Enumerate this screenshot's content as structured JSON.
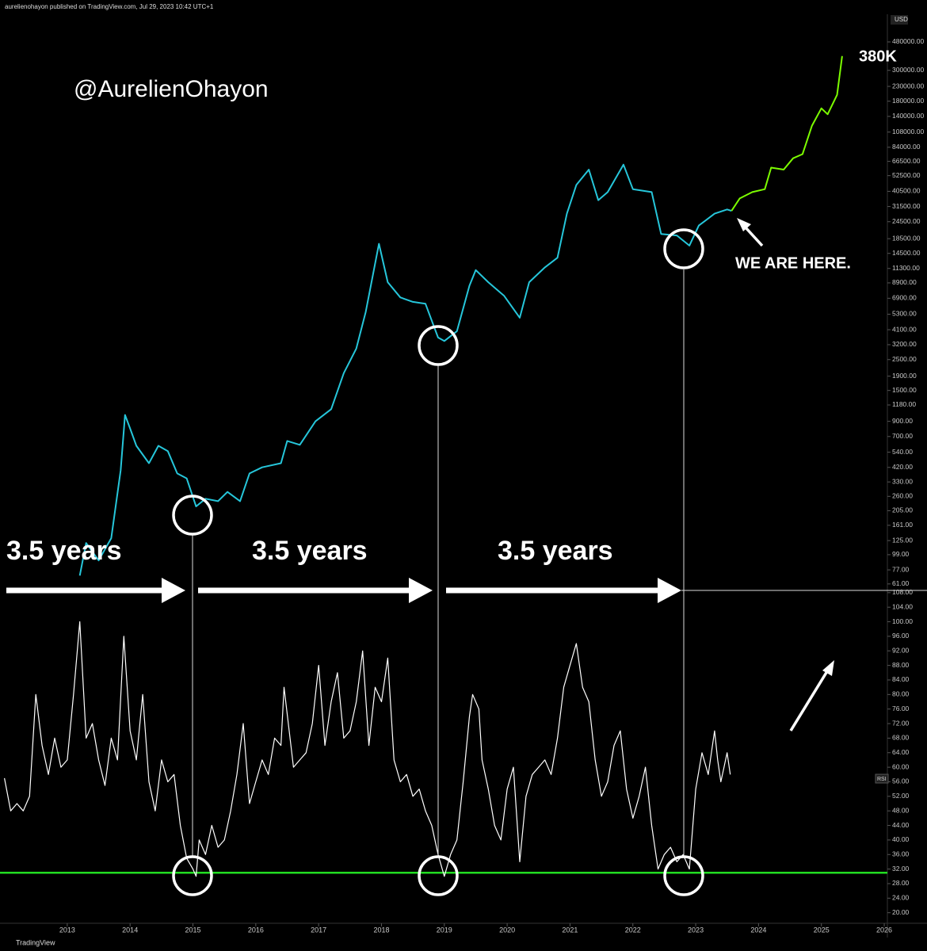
{
  "header": "aurelienohayon published on TradingView.com, Jul 29, 2023 10:42 UTC+1",
  "footer": "TradingView",
  "chart_data": [
    {
      "type": "line",
      "unit": "USD",
      "log_scale": true,
      "xlim": [
        2011.93,
        2026.05
      ],
      "ylim": [
        54.8,
        759000
      ],
      "yticks": [
        {
          "value": 480000,
          "label": "480000.00"
        },
        {
          "value": 300000,
          "label": "300000.00"
        },
        {
          "value": 230000,
          "label": "230000.00"
        },
        {
          "value": 180000,
          "label": "180000.00"
        },
        {
          "value": 140000,
          "label": "140000.00"
        },
        {
          "value": 108000,
          "label": "108000.00"
        },
        {
          "value": 84000,
          "label": "84000.00"
        },
        {
          "value": 66500,
          "label": "66500.00"
        },
        {
          "value": 52500,
          "label": "52500.00"
        },
        {
          "value": 40500,
          "label": "40500.00"
        },
        {
          "value": 31500,
          "label": "31500.00"
        },
        {
          "value": 24500,
          "label": "24500.00"
        },
        {
          "value": 18500,
          "label": "18500.00"
        },
        {
          "value": 14500,
          "label": "14500.00"
        },
        {
          "value": 11300,
          "label": "11300.00"
        },
        {
          "value": 8900,
          "label": "8900.00"
        },
        {
          "value": 6900,
          "label": "6900.00"
        },
        {
          "value": 5300,
          "label": "5300.00"
        },
        {
          "value": 4100,
          "label": "4100.00"
        },
        {
          "value": 3200,
          "label": "3200.00"
        },
        {
          "value": 2500,
          "label": "2500.00"
        },
        {
          "value": 1900,
          "label": "1900.00"
        },
        {
          "value": 1500,
          "label": "1500.00"
        },
        {
          "value": 1180,
          "label": "1180.00"
        },
        {
          "value": 900,
          "label": "900.00"
        },
        {
          "value": 700,
          "label": "700.00"
        },
        {
          "value": 540,
          "label": "540.00"
        },
        {
          "value": 420,
          "label": "420.00"
        },
        {
          "value": 330,
          "label": "330.00"
        },
        {
          "value": 260,
          "label": "260.00"
        },
        {
          "value": 205,
          "label": "205.00"
        },
        {
          "value": 161,
          "label": "161.00"
        },
        {
          "value": 125,
          "label": "125.00"
        },
        {
          "value": 99,
          "label": "99.00"
        },
        {
          "value": 77,
          "label": "77.00"
        },
        {
          "value": 61,
          "label": "61.00"
        }
      ],
      "series": [
        {
          "color": "#26c6da",
          "x": [
            2013.2,
            2013.3,
            2013.5,
            2013.7,
            2013.85,
            2013.92,
            2014.0,
            2014.1,
            2014.3,
            2014.45,
            2014.6,
            2014.75,
            2014.9,
            2015.05,
            2015.2,
            2015.4,
            2015.55,
            2015.75,
            2015.9,
            2016.1,
            2016.4,
            2016.5,
            2016.7,
            2016.95,
            2017.2,
            2017.4,
            2017.6,
            2017.75,
            2017.96,
            2018.1,
            2018.3,
            2018.5,
            2018.7,
            2018.9,
            2019.0,
            2019.2,
            2019.4,
            2019.5,
            2019.7,
            2019.95,
            2020.2,
            2020.35,
            2020.6,
            2020.8,
            2020.95,
            2021.1,
            2021.3,
            2021.45,
            2021.6,
            2021.85,
            2022.0,
            2022.3,
            2022.45,
            2022.7,
            2022.9,
            2023.05,
            2023.3,
            2023.5,
            2023.57
          ],
          "values": [
            70,
            120,
            90,
            130,
            400,
            1000,
            800,
            600,
            450,
            600,
            550,
            380,
            350,
            220,
            250,
            240,
            280,
            240,
            380,
            420,
            450,
            650,
            610,
            900,
            1100,
            2000,
            3000,
            5500,
            17000,
            9000,
            7000,
            6500,
            6300,
            3600,
            3400,
            4000,
            8500,
            11000,
            9000,
            7200,
            5000,
            9000,
            11500,
            13500,
            28000,
            45000,
            58000,
            35000,
            40000,
            63000,
            42000,
            40000,
            20000,
            19500,
            16500,
            23000,
            28000,
            30000,
            29300
          ]
        },
        {
          "color": "#7cfc00",
          "x": [
            2023.57,
            2023.7,
            2023.9,
            2024.1,
            2024.2,
            2024.4,
            2024.55,
            2024.7,
            2024.85,
            2025.0,
            2025.1,
            2025.25,
            2025.33
          ],
          "values": [
            29300,
            36000,
            40000,
            42000,
            60000,
            58000,
            70000,
            75000,
            120000,
            160000,
            145000,
            200000,
            380000
          ]
        }
      ],
      "annotations": [
        "@AurelienOhayon",
        "380K",
        "WE ARE HERE.",
        "3.5 years",
        "3.5 years",
        "3.5 years"
      ]
    },
    {
      "type": "line",
      "xlim": [
        2011.93,
        2026.05
      ],
      "ylim": [
        17.1,
        108.4
      ],
      "xticks": [
        2013,
        2014,
        2015,
        2016,
        2017,
        2018,
        2019,
        2020,
        2021,
        2022,
        2023,
        2024,
        2025,
        2026
      ],
      "yticks": [
        {
          "value": 108,
          "label": "108.00"
        },
        {
          "value": 104,
          "label": "104.00"
        },
        {
          "value": 100,
          "label": "100.00"
        },
        {
          "value": 96,
          "label": "96.00"
        },
        {
          "value": 92,
          "label": "92.00"
        },
        {
          "value": 88,
          "label": "88.00"
        },
        {
          "value": 84,
          "label": "84.00"
        },
        {
          "value": 80,
          "label": "80.00"
        },
        {
          "value": 76,
          "label": "76.00"
        },
        {
          "value": 72,
          "label": "72.00"
        },
        {
          "value": 68,
          "label": "68.00"
        },
        {
          "value": 64,
          "label": "64.00"
        },
        {
          "value": 60,
          "label": "60.00"
        },
        {
          "value": 56,
          "label": "56.00"
        },
        {
          "value": 52,
          "label": "52.00"
        },
        {
          "value": 48,
          "label": "48.00"
        },
        {
          "value": 44,
          "label": "44.00"
        },
        {
          "value": 40,
          "label": "40.00"
        },
        {
          "value": 36,
          "label": "36.00"
        },
        {
          "value": 32,
          "label": "32.00"
        },
        {
          "value": 28,
          "label": "28.00"
        },
        {
          "value": 24,
          "label": "24.00"
        },
        {
          "value": 20,
          "label": "20.00"
        }
      ],
      "hline": {
        "value": 31,
        "color": "#22dd22"
      },
      "series": [
        {
          "name": "RSI",
          "color": "#ffffff",
          "x": [
            2012.0,
            2012.1,
            2012.2,
            2012.3,
            2012.4,
            2012.5,
            2012.6,
            2012.7,
            2012.8,
            2012.9,
            2013.0,
            2013.1,
            2013.2,
            2013.3,
            2013.4,
            2013.5,
            2013.6,
            2013.7,
            2013.8,
            2013.9,
            2014.0,
            2014.1,
            2014.2,
            2014.3,
            2014.4,
            2014.5,
            2014.6,
            2014.7,
            2014.8,
            2014.9,
            2015.0,
            2015.05,
            2015.1,
            2015.2,
            2015.3,
            2015.4,
            2015.5,
            2015.6,
            2015.7,
            2015.8,
            2015.9,
            2016.0,
            2016.1,
            2016.2,
            2016.3,
            2016.4,
            2016.45,
            2016.6,
            2016.7,
            2016.8,
            2016.9,
            2017.0,
            2017.1,
            2017.2,
            2017.3,
            2017.4,
            2017.5,
            2017.6,
            2017.7,
            2017.8,
            2017.9,
            2018.0,
            2018.1,
            2018.2,
            2018.3,
            2018.4,
            2018.5,
            2018.6,
            2018.7,
            2018.8,
            2018.9,
            2019.0,
            2019.1,
            2019.2,
            2019.3,
            2019.4,
            2019.45,
            2019.55,
            2019.6,
            2019.7,
            2019.8,
            2019.9,
            2020.0,
            2020.1,
            2020.2,
            2020.3,
            2020.4,
            2020.5,
            2020.6,
            2020.7,
            2020.8,
            2020.9,
            2021.0,
            2021.1,
            2021.2,
            2021.3,
            2021.4,
            2021.5,
            2021.6,
            2021.7,
            2021.8,
            2021.9,
            2022.0,
            2022.1,
            2022.2,
            2022.3,
            2022.4,
            2022.5,
            2022.6,
            2022.7,
            2022.8,
            2022.9,
            2023.0,
            2023.1,
            2023.2,
            2023.3,
            2023.35,
            2023.4,
            2023.45,
            2023.5,
            2023.55
          ],
          "values": [
            57,
            48,
            50,
            48,
            52,
            80,
            66,
            58,
            68,
            60,
            62,
            80,
            100,
            68,
            72,
            62,
            55,
            68,
            62,
            96,
            70,
            62,
            80,
            56,
            48,
            62,
            56,
            58,
            44,
            35,
            32,
            30,
            40,
            36,
            44,
            38,
            40,
            48,
            58,
            72,
            50,
            56,
            62,
            58,
            68,
            66,
            82,
            60,
            62,
            64,
            72,
            88,
            66,
            78,
            86,
            68,
            70,
            78,
            92,
            66,
            82,
            78,
            90,
            62,
            56,
            58,
            52,
            54,
            48,
            44,
            36,
            30,
            36,
            40,
            56,
            74,
            80,
            76,
            62,
            54,
            44,
            40,
            54,
            60,
            34,
            52,
            58,
            60,
            62,
            58,
            68,
            82,
            88,
            94,
            82,
            78,
            62,
            52,
            56,
            66,
            70,
            54,
            46,
            52,
            60,
            44,
            32,
            36,
            38,
            34,
            36,
            32,
            54,
            64,
            58,
            70,
            62,
            56,
            60,
            64,
            58
          ]
        }
      ]
    }
  ]
}
